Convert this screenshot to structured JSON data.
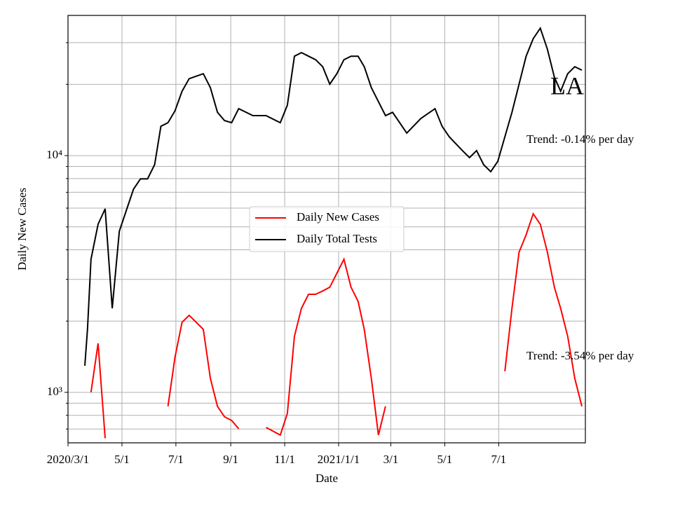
{
  "chart_data": {
    "type": "line",
    "annotations": [
      "LA",
      "Trend: -0.14% per day",
      "Trend: -3.54% per day"
    ],
    "xlabel": "Date",
    "ylabel": "Daily New Cases",
    "x": [
      19,
      22,
      26,
      34,
      42,
      50,
      58,
      66,
      74,
      82,
      90,
      98,
      105,
      113,
      121,
      129,
      137,
      153,
      161,
      169,
      177,
      185,
      193,
      209,
      224,
      240,
      248,
      256,
      264,
      272,
      280,
      288,
      296,
      304,
      312,
      320,
      328,
      335,
      343,
      351,
      359,
      367,
      375,
      383,
      399,
      415,
      423,
      431,
      446,
      454,
      462,
      470,
      478,
      486,
      494,
      502,
      510,
      518,
      526,
      534,
      542,
      550,
      557,
      565,
      573,
      581
    ],
    "series": [
      {
        "name": "Daily New Cases",
        "color": "#ff0000",
        "values": [
          null,
          null,
          1000,
          1610,
          640,
          null,
          null,
          null,
          null,
          null,
          null,
          null,
          null,
          873,
          1406,
          1977,
          2115,
          1846,
          1146,
          873,
          788,
          761,
          702,
          null,
          711,
          660,
          815,
          1725,
          2265,
          2596,
          2596,
          2680,
          2780,
          3185,
          3650,
          2780,
          2425,
          1846,
          1146,
          660,
          873,
          null,
          null,
          null,
          null,
          null,
          null,
          null,
          null,
          null,
          null,
          null,
          null,
          null,
          1227,
          2265,
          3910,
          4630,
          5680,
          5130,
          3910,
          2780,
          2265,
          1725,
          1146,
          873
        ]
      },
      {
        "name": "Daily Total Tests",
        "color": "#000000",
        "values": [
          1295,
          1846,
          3650,
          5130,
          5960,
          2265,
          4790,
          5880,
          7210,
          7980,
          7980,
          9160,
          13300,
          13770,
          15450,
          18700,
          21130,
          22180,
          19360,
          15240,
          14060,
          13770,
          15780,
          14750,
          14750,
          13770,
          16330,
          26300,
          27230,
          26300,
          25410,
          23750,
          20030,
          22180,
          25410,
          26300,
          26300,
          23750,
          19360,
          16900,
          14750,
          15240,
          13770,
          12450,
          14360,
          15780,
          13300,
          12020,
          10500,
          9800,
          10500,
          9160,
          8550,
          9460,
          12020,
          15240,
          20030,
          26300,
          31190,
          34530,
          28180,
          21430,
          18700,
          22180,
          23750,
          22960
        ]
      }
    ],
    "xlim": [
      0,
      585
    ],
    "xticks": [
      {
        "value": 0,
        "label": "2020/3/1"
      },
      {
        "value": 61,
        "label": "5/1"
      },
      {
        "value": 122,
        "label": "7/1"
      },
      {
        "value": 184,
        "label": "9/1"
      },
      {
        "value": 245,
        "label": "11/1"
      },
      {
        "value": 306,
        "label": "2021/1/1"
      },
      {
        "value": 365,
        "label": "3/1"
      },
      {
        "value": 426,
        "label": "5/1"
      },
      {
        "value": 487,
        "label": "7/1"
      }
    ],
    "ylim": [
      612,
      39100
    ],
    "log_scale": true,
    "yticks": [
      {
        "value": 1000,
        "label": "10³"
      },
      {
        "value": 10000,
        "label": "10⁴"
      }
    ],
    "minor_yticks": [
      700,
      800,
      900,
      2000,
      3000,
      4000,
      5000,
      6000,
      7000,
      8000,
      9000,
      20000,
      30000
    ],
    "grid": true,
    "legend": "center"
  }
}
